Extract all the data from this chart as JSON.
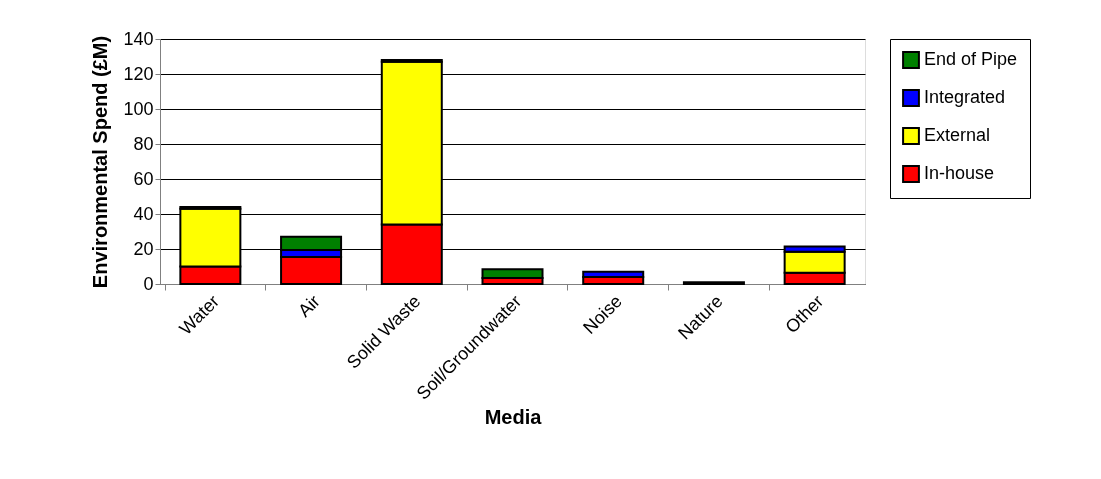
{
  "chart_data": {
    "type": "bar",
    "stacked": true,
    "xlabel": "Media",
    "ylabel": "Environmental Spend (£M)",
    "categories": [
      "Water",
      "Air",
      "Solid Waste",
      "Soil/Groundwater",
      "Noise",
      "Nature",
      "Other"
    ],
    "series": [
      {
        "name": "In-house",
        "color": "#ff0000",
        "values": [
          10,
          15.5,
          34,
          3.5,
          4,
          1,
          6.5
        ]
      },
      {
        "name": "External",
        "color": "#ffff00",
        "values": [
          33,
          null,
          93,
          0,
          0,
          0,
          12
        ]
      },
      {
        "name": "Integrated",
        "color": "#0000ff",
        "values": [
          null,
          4,
          null,
          0,
          3,
          0,
          3
        ]
      },
      {
        "name": "End of Pipe",
        "color": "#008000",
        "values": [
          1,
          7.5,
          1,
          5,
          0,
          0,
          0
        ]
      }
    ],
    "ylim": [
      0,
      140
    ],
    "yticks": [
      0,
      20,
      40,
      60,
      80,
      100,
      120,
      140
    ],
    "grid": "y",
    "legend": "right"
  }
}
